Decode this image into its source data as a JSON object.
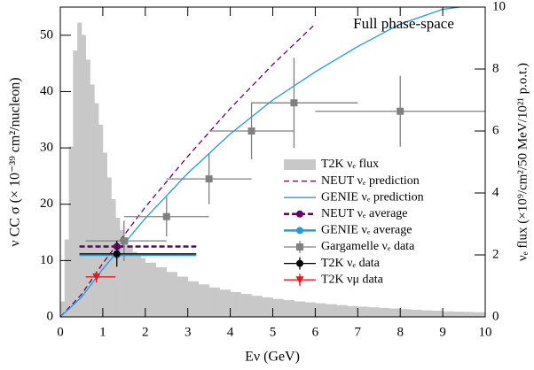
{
  "chart_data": {
    "type": "combo",
    "annotation": "Full phase-space",
    "x_label": "Eν (GeV)",
    "y_label": "ν CC σ (× 10⁻³⁹ cm²/nucleon)",
    "y2_label": "νₑ flux (×10⁹/cm²/50 MeV/10²¹ p.o.t.)",
    "xlim": [
      0,
      10
    ],
    "xticks": [
      0,
      1,
      2,
      3,
      4,
      5,
      6,
      7,
      8,
      9,
      10
    ],
    "ylim": [
      0,
      55
    ],
    "yticks": [
      0,
      10,
      20,
      30,
      40,
      50
    ],
    "y2lim": [
      0,
      10
    ],
    "y2ticks": [
      0,
      2,
      4,
      6,
      8,
      10
    ],
    "legend": "right",
    "series": [
      {
        "name": "T2K νₑ flux",
        "type": "histogram",
        "axis": "y2",
        "color": "#c8c8c8",
        "bins": [
          0,
          0.1,
          0.2,
          0.3,
          0.4,
          0.5,
          0.6,
          0.7,
          0.8,
          0.9,
          1.0,
          1.1,
          1.2,
          1.3,
          1.4,
          1.5,
          1.6,
          1.7,
          1.8,
          1.9,
          2.0,
          2.25,
          2.5,
          2.75,
          3.0,
          3.25,
          3.5,
          3.75,
          4.0,
          4.25,
          4.5,
          4.75,
          5.0,
          5.25,
          5.5,
          5.75,
          6.0,
          6.25,
          6.5,
          6.75,
          7.0,
          7.25,
          7.5,
          7.75,
          8.0,
          8.25,
          8.5,
          8.75,
          9.0,
          9.25,
          9.5,
          9.75,
          10
        ],
        "values": [
          0.5,
          2.5,
          5.5,
          8.6,
          9.5,
          9.1,
          8.3,
          7.5,
          6.9,
          6.2,
          5.3,
          4.5,
          3.8,
          3.2,
          2.8,
          2.5,
          2.3,
          2.1,
          2.0,
          1.9,
          1.75,
          1.6,
          1.45,
          1.3,
          1.15,
          1.05,
          0.95,
          0.88,
          0.8,
          0.74,
          0.68,
          0.63,
          0.58,
          0.54,
          0.5,
          0.47,
          0.44,
          0.41,
          0.38,
          0.35,
          0.33,
          0.31,
          0.29,
          0.27,
          0.25,
          0.23,
          0.21,
          0.2,
          0.18,
          0.17,
          0.16,
          0.15
        ]
      },
      {
        "name": "NEUT νₑ prediction",
        "type": "line",
        "color": "#660066",
        "dash": true,
        "x": [
          0,
          0.5,
          1,
          1.5,
          2,
          3,
          4,
          5,
          6
        ],
        "values": [
          0,
          4,
          9.5,
          14.5,
          19.5,
          28.5,
          37,
          44.8,
          52
        ]
      },
      {
        "name": "GENIE νₑ prediction",
        "type": "line",
        "color": "#1f9be0",
        "dash": false,
        "x": [
          0,
          0.5,
          1,
          1.5,
          2,
          3,
          4,
          5,
          6,
          7,
          8,
          9,
          9.4
        ],
        "values": [
          0,
          3.5,
          8.5,
          13,
          17.5,
          25.5,
          32.5,
          38.5,
          43.5,
          48,
          52,
          54.6,
          55
        ]
      },
      {
        "name": "NEUT νₑ average",
        "type": "average",
        "color": "#660066",
        "dash": true,
        "x": [
          1.33
        ],
        "xlow": [
          0.45
        ],
        "xhigh": [
          3.2
        ],
        "values": [
          12.5
        ]
      },
      {
        "name": "GENIE νₑ average",
        "type": "average",
        "color": "#1f9be0",
        "dash": false,
        "x": [
          1.33
        ],
        "xlow": [
          0.45
        ],
        "xhigh": [
          3.2
        ],
        "values": [
          11
        ]
      },
      {
        "name": "Gargamelle νₑ data",
        "type": "errorbar",
        "marker": "square",
        "color": "#808080",
        "x": [
          1.5,
          2.5,
          3.5,
          4.5,
          5.5,
          8
        ],
        "xlow": [
          0.6,
          1.5,
          2.5,
          3.5,
          4.5,
          6
        ],
        "xhigh": [
          2.5,
          3.5,
          4.5,
          5.5,
          7,
          10
        ],
        "values": [
          13.5,
          17.8,
          24.5,
          33,
          38,
          36.5
        ],
        "yerr": [
          3.6,
          3.5,
          4.5,
          5,
          8,
          6.3
        ]
      },
      {
        "name": "T2K νₑ data",
        "type": "errorbar",
        "marker": "circle",
        "color": "#000000",
        "x": [
          1.33
        ],
        "xlow": [
          0.45
        ],
        "xhigh": [
          3.2
        ],
        "values": [
          11.2
        ],
        "yerr": [
          2.3
        ]
      },
      {
        "name": "T2K νμ data",
        "type": "errorbar",
        "marker": "triangle",
        "color": "#e8141e",
        "x": [
          0.85
        ],
        "xlow": [
          0.6
        ],
        "xhigh": [
          1.3
        ],
        "values": [
          7.1
        ],
        "yerr": [
          1.0
        ]
      }
    ]
  }
}
